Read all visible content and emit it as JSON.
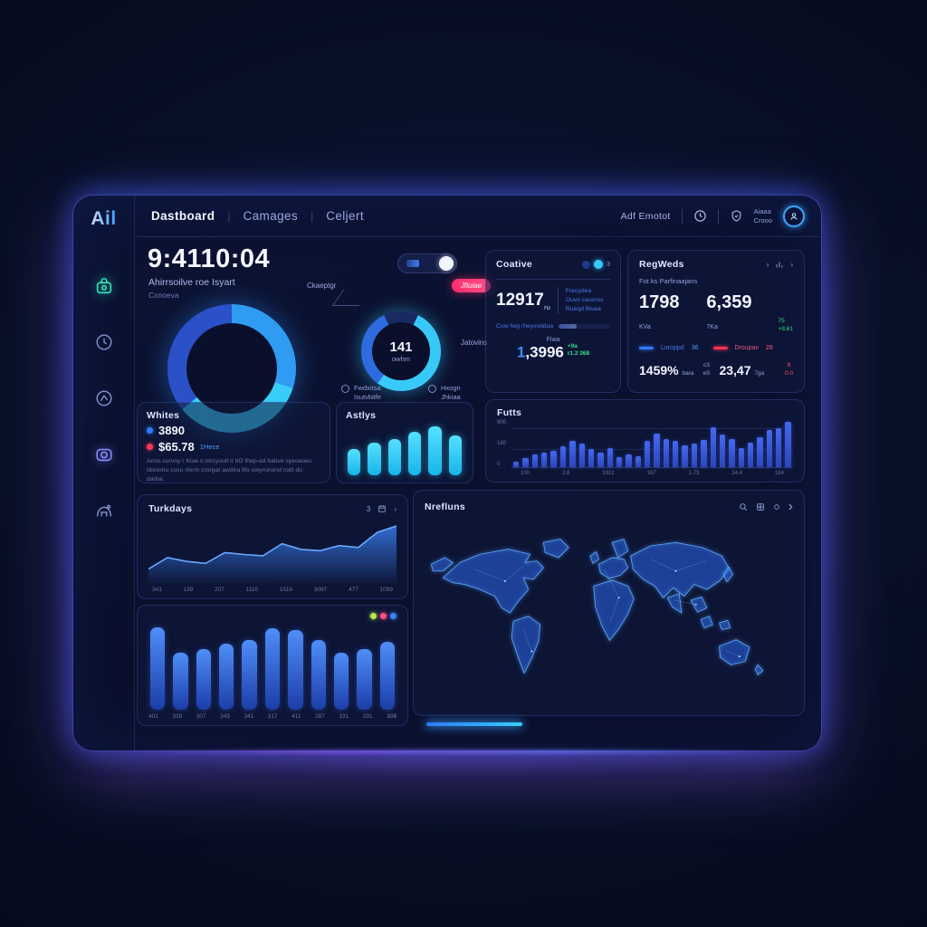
{
  "brand": {
    "logo": "Ail"
  },
  "nav": {
    "items": [
      {
        "label": "Dastboard",
        "active": true
      },
      {
        "label": "Camages",
        "active": false
      },
      {
        "label": "Celjert",
        "active": false
      }
    ],
    "right_label": "Adf Emotot",
    "account": {
      "line1": "Aiaaa",
      "line2": "Crooo"
    }
  },
  "sidebar": {
    "icons": [
      "briefcase-icon",
      "clock-icon",
      "pie-icon",
      "camera-icon",
      "home-icon"
    ]
  },
  "overview": {
    "time": "9:4110:04",
    "subtitle": "Ahirrsoilve roe Isyart",
    "caption": "Cxnoeva"
  },
  "gauge": {
    "center_value": "141",
    "center_unit": "owhm",
    "label_top": "Ckaeptgr",
    "badge": "Jfiuiae",
    "label_right": "Jatovins",
    "legend1_line1": "Fwdxitsa",
    "legend1_line2": "Isutvbitfe",
    "legend2_line1": "Hxogn",
    "legend2_line2": "Jhkiaa"
  },
  "whites": {
    "title": "Whites",
    "row1_value": "3890",
    "row2_value": "$65.78",
    "row2_tag": "1Hece",
    "description": "Anso curvoy r Kiue o torcyoutl ir tiO thep-od bative syeoeoec ldoonnu cosu rferm crorgat awdira filo owyruroind rodt do darba.",
    "dot1_color": "#2f7bff",
    "dot2_color": "#ff3355"
  },
  "astlys": {
    "title": "Astlys"
  },
  "coative": {
    "title": "Coative",
    "count": "3",
    "metric": "12917",
    "metric_suffix": "ru",
    "lines": [
      "Frecydea",
      "Ouvo ceuvrss",
      "Rueqd Bivea"
    ],
    "line1": "Frecydea",
    "line2": "Ouvo ceuvrss",
    "line3": "Rueqd Bivea",
    "progress_label": "Cow fwg rheyvvddua",
    "progress_pct": 35,
    "sub_label": "Fiwa",
    "sub_value_accent": "1",
    "sub_value_rest": ",3996",
    "sub_delta_line1": "+9a",
    "sub_delta_line2": "r1.2 368"
  },
  "regweds": {
    "title": "RegWeds",
    "subtitle": "Fot ks Parfinaajans",
    "stat1": "1798",
    "stat1_suffix": "KVa",
    "stat2": "6,359",
    "stat2_suffix": "7Ka",
    "stat2_delta_line1": "75",
    "stat2_delta_line2": "+8.61",
    "legend1_label": "Loroppd",
    "legend1_value": "36",
    "legend2_label": "Droupav",
    "legend2_value": "26",
    "stat3": "1459%",
    "stat3_suffix": "bara",
    "mid_line1": "c3",
    "mid_line2": "eS",
    "stat4": "23,47",
    "stat4_suffix": "7ga",
    "stat4_delta_line1": "8",
    "stat4_delta_line2": "0.0",
    "blue": "#2f7bff",
    "red": "#ff3355"
  },
  "futs": {
    "title": "Futts"
  },
  "turkdays": {
    "title": "Turkdays",
    "badge": "3"
  },
  "volume": {
    "trail_label": "194"
  },
  "map_panel": {
    "title": "Nrefluns"
  },
  "chart_data": [
    {
      "id": "overview-donut",
      "type": "donut",
      "title": "",
      "segments": [
        {
          "name": "bright-blue",
          "color": "#2f9bf2",
          "to": 30
        },
        {
          "name": "cyan",
          "color": "#38cdf8",
          "to": 64
        },
        {
          "name": "dark-blue",
          "color": "#2b50c8",
          "to": 100
        }
      ]
    },
    {
      "id": "gauge-donut",
      "type": "donut",
      "title": "Ckaeptgr",
      "center": "141 owhm",
      "segments": [
        {
          "name": "dark",
          "color": "#182a60",
          "to": 7
        },
        {
          "name": "cyan",
          "color": "#38c9f8",
          "to": 60
        },
        {
          "name": "blue",
          "color": "#2f6be0",
          "to": 93
        },
        {
          "name": "dark2",
          "color": "#182a60",
          "to": 100
        }
      ]
    },
    {
      "id": "astlys-bars",
      "type": "bar",
      "title": "Astlys",
      "bar_class": "cyanbar",
      "values": [
        52,
        64,
        72,
        86,
        96,
        78
      ],
      "ylim": [
        0,
        100
      ]
    },
    {
      "id": "futs-bars",
      "type": "bar",
      "title": "Futts",
      "bar_class": "bluebar",
      "values": [
        12,
        20,
        26,
        30,
        34,
        44,
        55,
        50,
        38,
        30,
        40,
        22,
        26,
        24,
        56,
        72,
        60,
        55,
        46,
        50,
        58,
        85,
        70,
        60,
        40,
        52,
        64,
        78,
        82,
        96
      ],
      "x_ticks": [
        "100",
        "2.8",
        "1912",
        "167",
        "1.73",
        "14.4",
        "184"
      ],
      "y_ticks": [
        "900",
        "180",
        "0"
      ],
      "ylim": [
        0,
        900
      ],
      "grid": true
    },
    {
      "id": "turkdays-area",
      "type": "area",
      "title": "Turkdays",
      "color": "#3b82f6",
      "line_color": "#69a8ff",
      "values": [
        22,
        40,
        34,
        31,
        48,
        45,
        43,
        62,
        53,
        51,
        59,
        56,
        80,
        90
      ],
      "x_ticks": [
        "341",
        "139",
        "207",
        "1110",
        "1516",
        "3097",
        "477",
        "1099"
      ],
      "ylim": [
        0,
        100
      ],
      "grid": false
    },
    {
      "id": "volume-bars",
      "type": "bar",
      "title": "",
      "bar_class": "gradbar",
      "values": [
        95,
        66,
        70,
        76,
        80,
        94,
        92,
        80,
        66,
        70,
        78
      ],
      "x_ticks": [
        "401",
        "339",
        "307",
        "349",
        "341",
        "317",
        "411",
        "287",
        "191",
        "291",
        "309"
      ],
      "ylim": [
        0,
        100
      ],
      "legend_dot_colors": [
        "#b6e84a",
        "#ff4d86",
        "#3b82f6"
      ]
    }
  ]
}
